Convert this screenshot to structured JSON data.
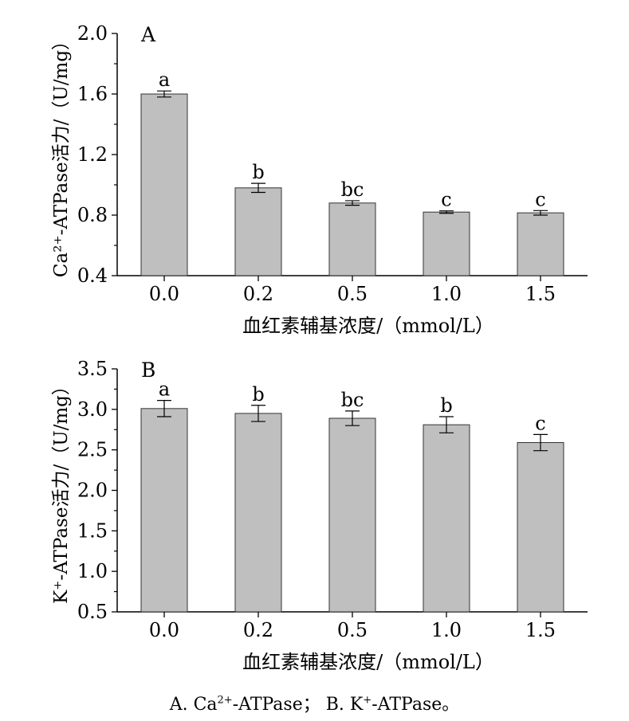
{
  "chart_data": [
    {
      "type": "bar",
      "panel_label": "A",
      "categories": [
        "0.0",
        "0.2",
        "0.5",
        "1.0",
        "1.5"
      ],
      "values": [
        1.6,
        0.98,
        0.88,
        0.82,
        0.815
      ],
      "errors": [
        0.02,
        0.03,
        0.015,
        0.008,
        0.015
      ],
      "letters": [
        "a",
        "b",
        "bc",
        "c",
        "c"
      ],
      "ylim": [
        0.4,
        2.0
      ],
      "yticks": [
        "0.4",
        "0.8",
        "1.2",
        "1.6",
        "2.0"
      ],
      "ylabel": "Ca²⁺-ATPase活力/（U/mg）",
      "xlabel": "血红素辅基浓度/（mmol/L）",
      "bar_color": "#bfbfbf"
    },
    {
      "type": "bar",
      "panel_label": "B",
      "categories": [
        "0.0",
        "0.2",
        "0.5",
        "1.0",
        "1.5"
      ],
      "values": [
        3.01,
        2.95,
        2.89,
        2.81,
        2.59
      ],
      "errors": [
        0.1,
        0.1,
        0.09,
        0.1,
        0.1
      ],
      "letters": [
        "a",
        "b",
        "bc",
        "b",
        "c"
      ],
      "ylim": [
        0.5,
        3.5
      ],
      "yticks": [
        "0.5",
        "1.0",
        "1.5",
        "2.0",
        "2.5",
        "3.0",
        "3.5"
      ],
      "ylabel": "K⁺-ATPase活力/（U/mg）",
      "xlabel": "血红素辅基浓度/（mmol/L）",
      "bar_color": "#bfbfbf"
    }
  ],
  "caption": {
    "a_prefix": "A. Ca",
    "a_sup": "2+",
    "a_suffix": "-ATPase；",
    "b_prefix": " B. K",
    "b_sup": "+",
    "b_suffix": "-ATPase。"
  }
}
